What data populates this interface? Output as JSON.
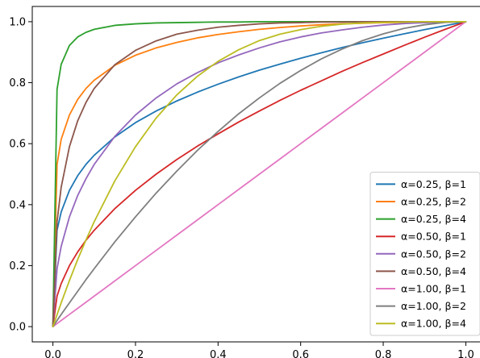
{
  "chart_data": {
    "type": "line",
    "title": "",
    "xlabel": "",
    "ylabel": "",
    "xlim": [
      -0.05,
      1.05
    ],
    "ylim": [
      -0.05,
      1.05
    ],
    "xticks": [
      0.0,
      0.2,
      0.4,
      0.6,
      0.8,
      1.0
    ],
    "yticks": [
      0.0,
      0.2,
      0.4,
      0.6,
      0.8,
      1.0
    ],
    "xtick_labels": [
      "0.0",
      "0.2",
      "0.4",
      "0.6",
      "0.8",
      "1.0"
    ],
    "ytick_labels": [
      "0.0",
      "0.2",
      "0.4",
      "0.6",
      "0.8",
      "1.0"
    ],
    "grid": false,
    "legend_position": "lower-right",
    "x": [
      0.0,
      0.01,
      0.02,
      0.04,
      0.06,
      0.08,
      0.1,
      0.15,
      0.2,
      0.25,
      0.3,
      0.35,
      0.4,
      0.45,
      0.5,
      0.55,
      0.6,
      0.65,
      0.7,
      0.75,
      0.8,
      0.85,
      0.9,
      0.95,
      1.0
    ],
    "series": [
      {
        "name": "α=0.25, β=1",
        "color": "#1f77b4",
        "values": [
          0.0,
          0.316,
          0.376,
          0.447,
          0.495,
          0.532,
          0.562,
          0.622,
          0.669,
          0.707,
          0.74,
          0.769,
          0.795,
          0.819,
          0.841,
          0.861,
          0.88,
          0.898,
          0.915,
          0.931,
          0.946,
          0.96,
          0.974,
          0.987,
          1.0
        ]
      },
      {
        "name": "α=0.25, β=2",
        "color": "#ff7f0e",
        "values": [
          0.0,
          0.532,
          0.614,
          0.694,
          0.745,
          0.781,
          0.808,
          0.857,
          0.89,
          0.914,
          0.932,
          0.947,
          0.958,
          0.967,
          0.975,
          0.981,
          0.986,
          0.99,
          0.993,
          0.995,
          0.997,
          0.998,
          0.999,
          1.0,
          1.0
        ]
      },
      {
        "name": "α=0.25, β=4",
        "color": "#2ca02c",
        "values": [
          0.0,
          0.778,
          0.86,
          0.922,
          0.95,
          0.965,
          0.975,
          0.988,
          0.993,
          0.996,
          0.997,
          0.998,
          0.999,
          0.999,
          1.0,
          1.0,
          1.0,
          1.0,
          1.0,
          1.0,
          1.0,
          1.0,
          1.0,
          1.0,
          1.0
        ]
      },
      {
        "name": "α=0.50, β=1",
        "color": "#d62728",
        "values": [
          0.0,
          0.1,
          0.141,
          0.2,
          0.245,
          0.283,
          0.316,
          0.387,
          0.447,
          0.5,
          0.548,
          0.592,
          0.632,
          0.671,
          0.707,
          0.742,
          0.775,
          0.806,
          0.837,
          0.866,
          0.894,
          0.922,
          0.949,
          0.975,
          1.0
        ]
      },
      {
        "name": "α=0.50, β=2",
        "color": "#9467bd",
        "values": [
          0.0,
          0.19,
          0.263,
          0.36,
          0.43,
          0.485,
          0.532,
          0.624,
          0.694,
          0.75,
          0.796,
          0.833,
          0.865,
          0.891,
          0.914,
          0.934,
          0.95,
          0.963,
          0.973,
          0.982,
          0.989,
          0.994,
          0.997,
          0.999,
          1.0
        ]
      },
      {
        "name": "α=0.50, β=4",
        "color": "#8c564b",
        "values": [
          0.0,
          0.344,
          0.457,
          0.59,
          0.675,
          0.735,
          0.781,
          0.859,
          0.906,
          0.937,
          0.959,
          0.972,
          0.982,
          0.988,
          0.993,
          0.996,
          0.997,
          0.999,
          0.999,
          1.0,
          1.0,
          1.0,
          1.0,
          1.0,
          1.0
        ]
      },
      {
        "name": "α=1.00, β=1",
        "color": "#e377c2",
        "values": [
          0.0,
          0.01,
          0.02,
          0.04,
          0.06,
          0.08,
          0.1,
          0.15,
          0.2,
          0.25,
          0.3,
          0.35,
          0.4,
          0.45,
          0.5,
          0.55,
          0.6,
          0.65,
          0.7,
          0.75,
          0.8,
          0.85,
          0.9,
          0.95,
          1.0
        ]
      },
      {
        "name": "α=1.00, β=2",
        "color": "#7f7f7f",
        "values": [
          0.0,
          0.02,
          0.04,
          0.078,
          0.116,
          0.154,
          0.19,
          0.278,
          0.36,
          0.438,
          0.51,
          0.578,
          0.64,
          0.698,
          0.75,
          0.798,
          0.84,
          0.878,
          0.91,
          0.938,
          0.96,
          0.978,
          0.99,
          0.998,
          1.0
        ]
      },
      {
        "name": "α=1.00, β=4",
        "color": "#bcbd22",
        "values": [
          0.0,
          0.039,
          0.078,
          0.151,
          0.22,
          0.284,
          0.344,
          0.478,
          0.59,
          0.684,
          0.76,
          0.821,
          0.87,
          0.908,
          0.938,
          0.959,
          0.974,
          0.985,
          0.992,
          0.996,
          0.998,
          0.999,
          1.0,
          1.0,
          1.0
        ]
      }
    ]
  }
}
